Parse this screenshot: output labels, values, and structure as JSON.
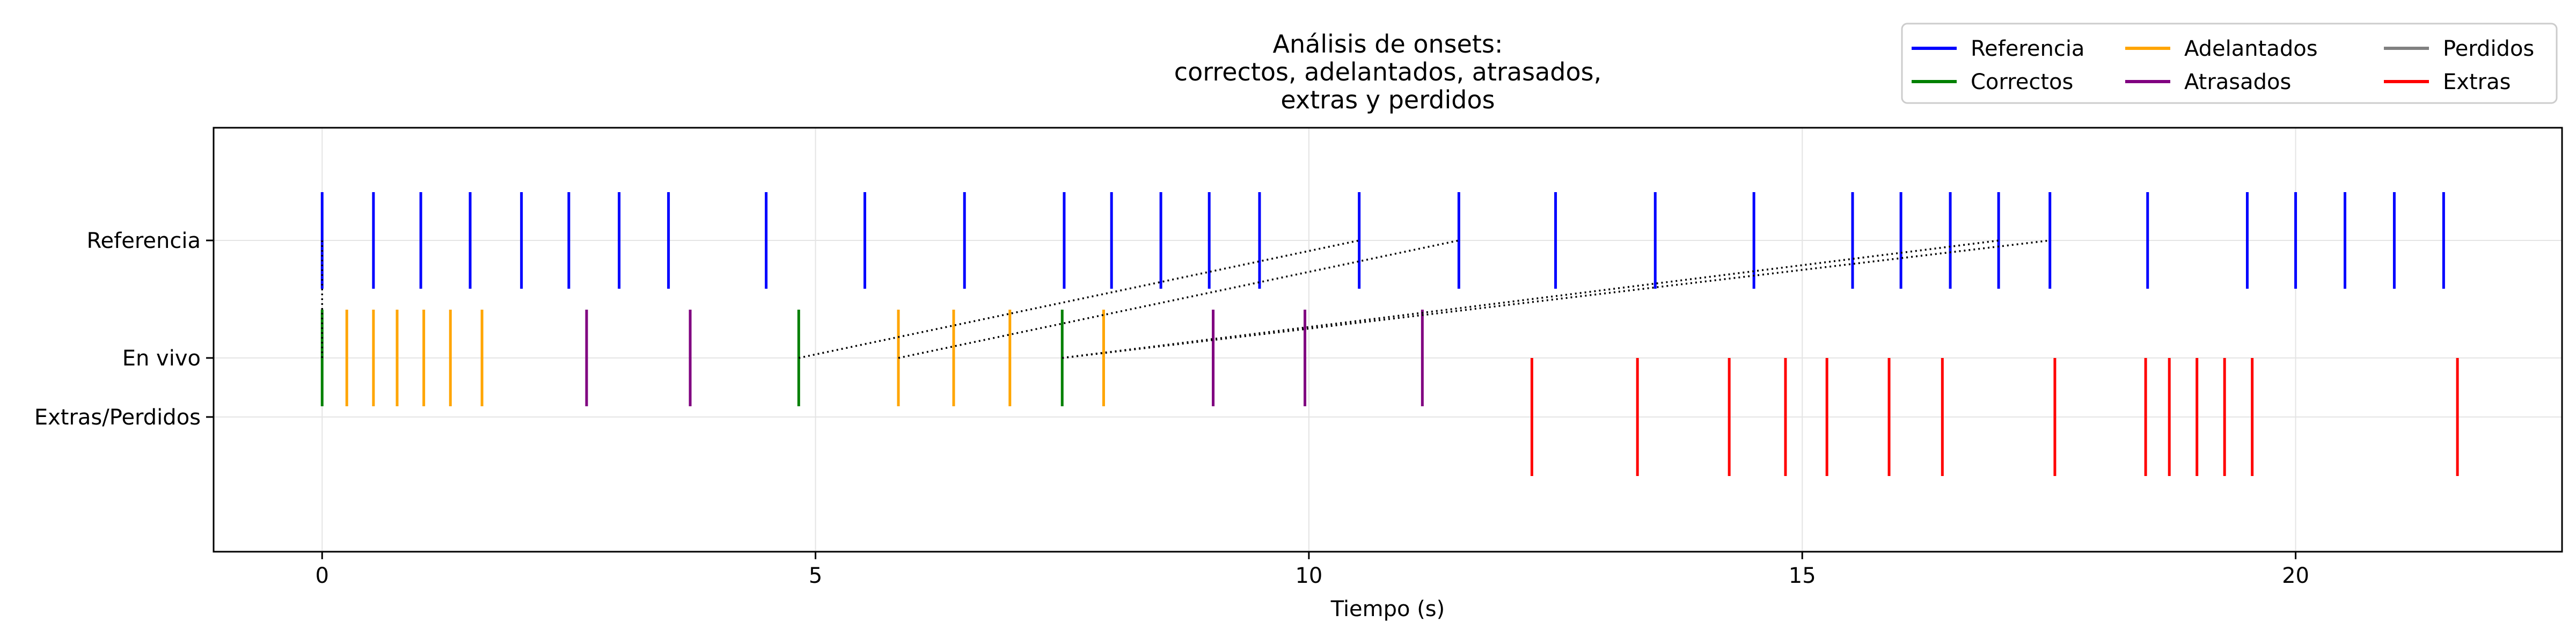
{
  "chart_data": {
    "type": "event-raster",
    "title_lines": [
      "Análisis de onsets:",
      "correctos, adelantados, atrasados,",
      "extras y perdidos"
    ],
    "xlabel": "Tiempo (s)",
    "xlim": [
      -1.1,
      22.7
    ],
    "xticks": [
      0,
      5,
      10,
      15,
      20
    ],
    "y_categories": [
      "Referencia",
      "En vivo",
      "Extras/Perdidos"
    ],
    "grid": true,
    "legend": {
      "placement": "top-right",
      "columns": 3,
      "entries": [
        {
          "label": "Referencia",
          "color": "#0000ff"
        },
        {
          "label": "Correctos",
          "color": "#008000"
        },
        {
          "label": "Adelantados",
          "color": "#ffa500"
        },
        {
          "label": "Atrasados",
          "color": "#800080"
        },
        {
          "label": "Perdidos",
          "color": "#808080"
        },
        {
          "label": "Extras",
          "color": "#ff0000"
        }
      ]
    },
    "reference_onsets": [
      0,
      0.52,
      1.0,
      1.5,
      2.02,
      2.5,
      3.01,
      3.51,
      4.5,
      5.5,
      6.51,
      7.52,
      8.0,
      8.5,
      8.99,
      9.5,
      10.51,
      11.52,
      12.5,
      13.51,
      14.51,
      15.51,
      16.0,
      16.5,
      16.99,
      17.51,
      18.5,
      19.51,
      20.0,
      20.5,
      21.0,
      21.5
    ],
    "correct_onsets": [
      0,
      4.83,
      7.5
    ],
    "early_onsets": [
      0.25,
      0.52,
      0.76,
      1.03,
      1.3,
      1.62,
      5.84,
      6.4,
      6.97,
      7.92
    ],
    "late_onsets": [
      2.68,
      3.73,
      9.03,
      9.96,
      11.15
    ],
    "extra_onsets": [
      12.26,
      13.33,
      14.26,
      14.83,
      15.25,
      15.88,
      16.42,
      17.56,
      18.48,
      18.72,
      19.0,
      19.28,
      19.56,
      21.64
    ],
    "missed_onsets": [],
    "matches": [
      {
        "ref": 0,
        "live": 0
      },
      {
        "ref": 10.51,
        "live": 4.83
      },
      {
        "ref": 11.52,
        "live": 5.84
      },
      {
        "ref": 17.51,
        "live": 7.5
      },
      {
        "ref": 17.0,
        "live": 7.5
      }
    ]
  }
}
